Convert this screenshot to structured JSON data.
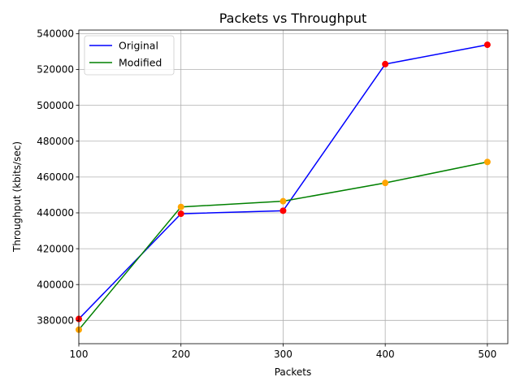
{
  "chart_data": {
    "type": "line",
    "title": "Packets vs Throughput",
    "xlabel": "Packets",
    "ylabel": "Throughput (kbits/sec)",
    "x": [
      100,
      200,
      300,
      400,
      500
    ],
    "xlim": [
      100,
      520
    ],
    "ylim": [
      367000,
      542000
    ],
    "x_ticks": [
      100,
      200,
      300,
      400,
      500
    ],
    "y_ticks": [
      380000,
      400000,
      420000,
      440000,
      460000,
      480000,
      500000,
      520000,
      540000
    ],
    "grid": true,
    "legend_position": "top-left",
    "series": [
      {
        "name": "Original",
        "values": [
          380800,
          439500,
          441200,
          523000,
          533800
        ],
        "line_color": "#0000ff",
        "marker_color": "#ff0000"
      },
      {
        "name": "Modified",
        "values": [
          374800,
          443300,
          446500,
          456700,
          468400
        ],
        "line_color": "#008000",
        "marker_color": "#ffa500"
      }
    ]
  }
}
